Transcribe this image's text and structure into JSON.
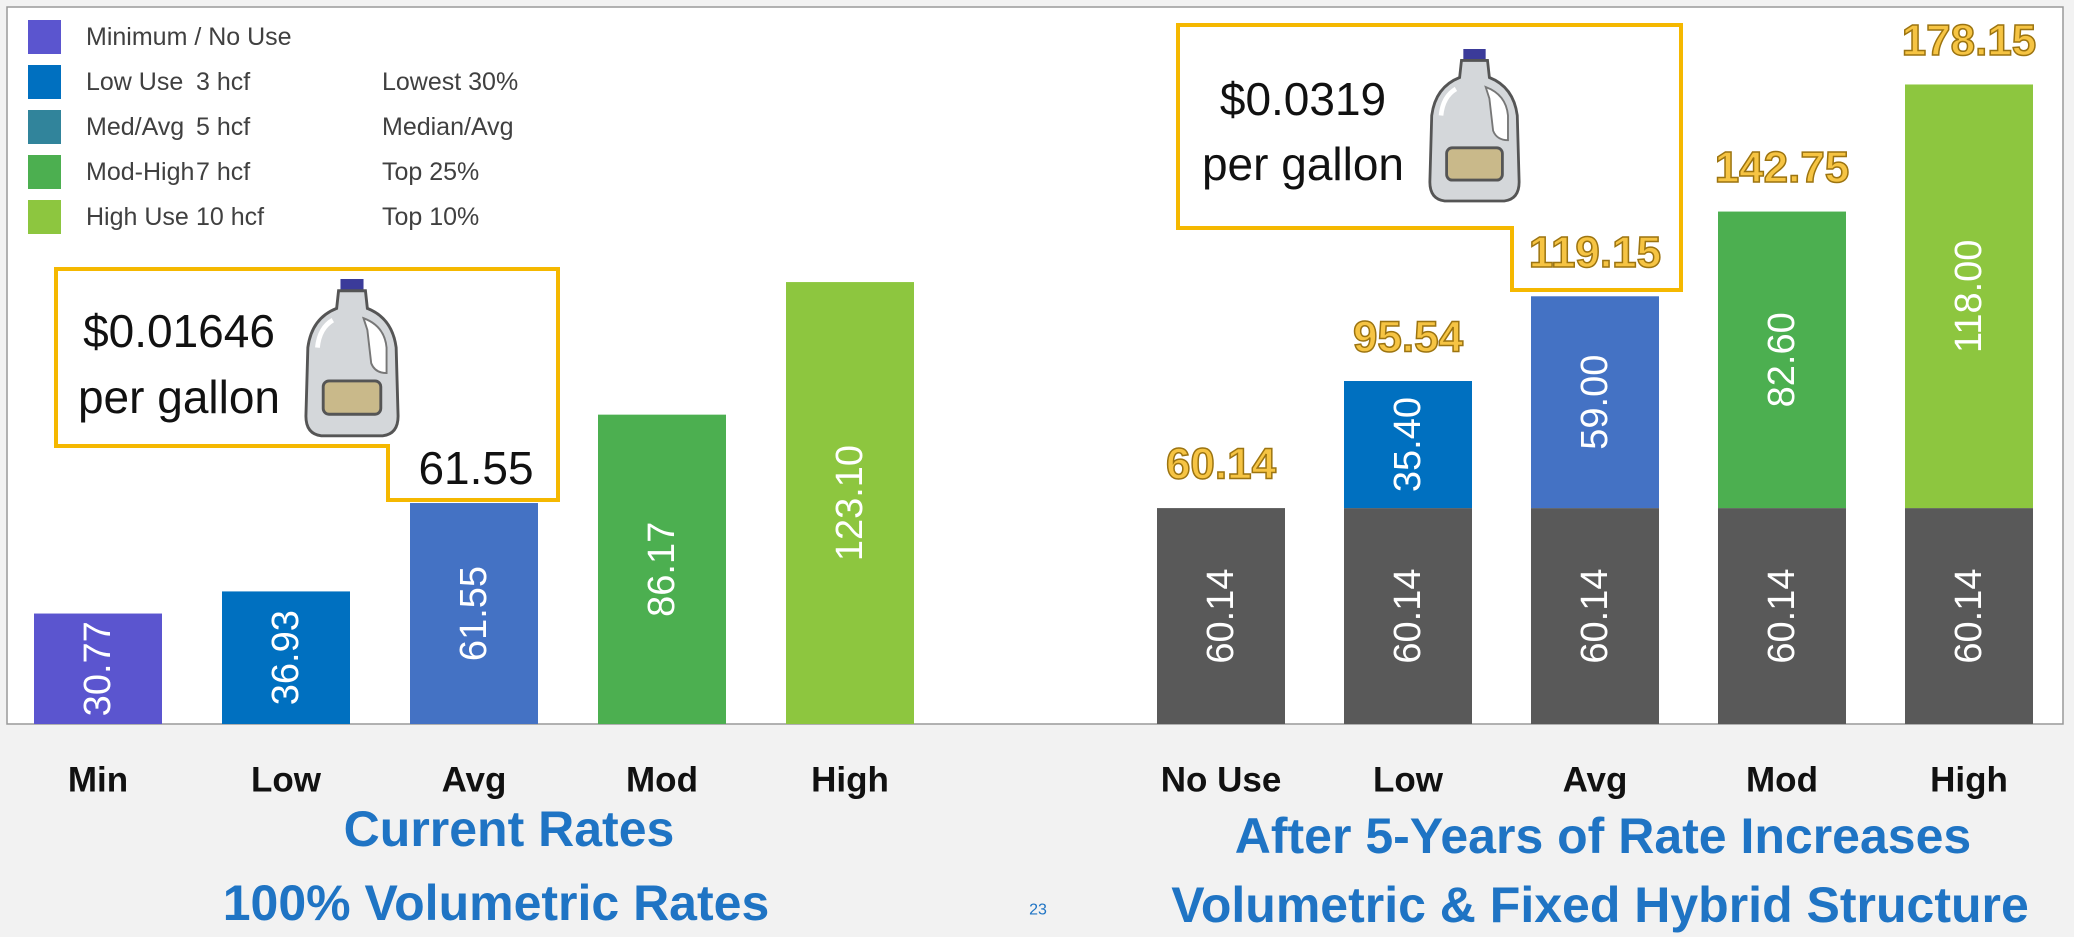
{
  "legend": {
    "items": [
      {
        "label": "Minimum / No Use",
        "color": "#5b55cf"
      },
      {
        "label": "Low Use",
        "amount": "3 hcf",
        "rank": "Lowest 30%",
        "color": "#0070c0"
      },
      {
        "label": "Med/Avg",
        "amount": "5 hcf",
        "rank": "Median/Avg",
        "color": "#31849b"
      },
      {
        "label": "Mod-High",
        "amount": "7 hcf",
        "rank": "Top 25%",
        "color": "#4caf50"
      },
      {
        "label": "High Use",
        "amount": "10 hcf",
        "rank": "Top 10%",
        "color": "#8dc63f"
      }
    ]
  },
  "callouts": [
    {
      "price": "$0.01646",
      "unit": "per gallon",
      "value": "61.55"
    },
    {
      "price": "$0.0319",
      "unit": "per gallon"
    }
  ],
  "page_number": "23",
  "chart_data": [
    {
      "type": "bar",
      "subtitles": [
        "Current Rates",
        "100% Volumetric Rates"
      ],
      "categories": [
        "Min",
        "Low",
        "Avg",
        "Mod",
        "High"
      ],
      "ylim": [
        0,
        200
      ],
      "series": [
        {
          "colors": [
            "#5b55cf",
            "#0070c0",
            "#4472c4",
            "#4caf50",
            "#8dc63f"
          ],
          "values": [
            30.77,
            36.93,
            61.55,
            86.17,
            123.1
          ],
          "value_labels": [
            "30.77",
            "36.93",
            "61.55",
            "86.17",
            "123.10"
          ]
        }
      ]
    },
    {
      "type": "stacked_bar",
      "subtitles": [
        "After 5-Years of Rate Increases",
        "Volumetric & Fixed Hybrid Structure"
      ],
      "categories": [
        "No Use",
        "Low",
        "Avg",
        "Mod",
        "High"
      ],
      "ylim": [
        0,
        200
      ],
      "series": [
        {
          "colors": [
            "#595959",
            "#595959",
            "#595959",
            "#595959",
            "#595959"
          ],
          "values": [
            60.14,
            60.14,
            60.14,
            60.14,
            60.14
          ],
          "value_labels": [
            "60.14",
            "60.14",
            "60.14",
            "60.14",
            "60.14"
          ]
        },
        {
          "colors": [
            null,
            "#0070c0",
            "#4472c4",
            "#4caf50",
            "#8dc63f"
          ],
          "values": [
            null,
            35.4,
            59.0,
            82.6,
            118.0
          ],
          "value_labels": [
            null,
            "35.40",
            "59.00",
            "82.60",
            "118.00"
          ]
        }
      ],
      "totals": [
        60.14,
        95.54,
        119.15,
        142.75,
        178.15
      ]
    }
  ]
}
